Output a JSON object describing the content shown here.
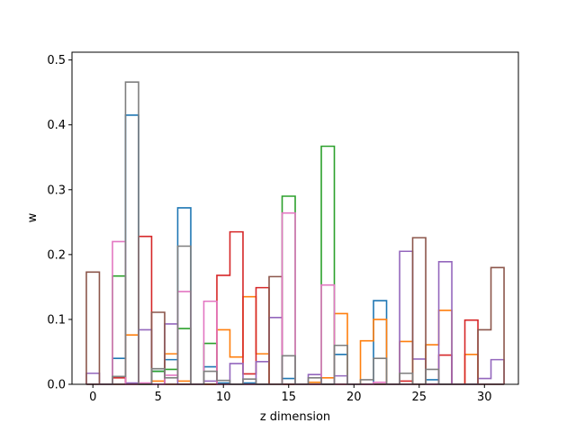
{
  "chart_data": {
    "type": "bar",
    "style": "step-histogram-outlines",
    "xlabel": "z dimension",
    "ylabel": "w",
    "xlim": [
      -1.6,
      32.6
    ],
    "ylim": [
      0,
      0.512
    ],
    "xticks": [
      0,
      5,
      10,
      15,
      20,
      25,
      30
    ],
    "yticks": [
      0.0,
      0.1,
      0.2,
      0.3,
      0.4,
      0.5
    ],
    "ytick_labels": [
      "0.0",
      "0.1",
      "0.2",
      "0.3",
      "0.4",
      "0.5"
    ],
    "grid": false,
    "legend": "none",
    "x": [
      0,
      1,
      2,
      3,
      4,
      5,
      6,
      7,
      8,
      9,
      10,
      11,
      12,
      13,
      14,
      15,
      16,
      17,
      18,
      19,
      20,
      21,
      22,
      23,
      24,
      25,
      26,
      27,
      28,
      29,
      30,
      31
    ],
    "series": [
      {
        "color": "#1f77b4",
        "values": [
          0,
          0,
          0.04,
          0.415,
          0,
          0.02,
          0.038,
          0.272,
          0,
          0.027,
          0.002,
          0,
          0.002,
          0,
          0,
          0.009,
          0,
          0,
          0,
          0.046,
          0,
          0,
          0.129,
          0,
          0,
          0,
          0.007,
          0,
          0,
          0,
          0,
          0
        ]
      },
      {
        "color": "#ff7f0e",
        "values": [
          0,
          0,
          0,
          0.076,
          0,
          0.005,
          0.047,
          0.005,
          0,
          0,
          0.084,
          0.042,
          0.135,
          0.047,
          0,
          0,
          0,
          0.003,
          0.01,
          0.109,
          0,
          0.067,
          0.1,
          0,
          0.066,
          0,
          0.061,
          0.114,
          0,
          0.046,
          0,
          0
        ]
      },
      {
        "color": "#2ca02c",
        "values": [
          0,
          0,
          0.167,
          0,
          0,
          0.02,
          0.023,
          0.086,
          0,
          0.063,
          0,
          0,
          0,
          0,
          0,
          0.29,
          0,
          0,
          0.367,
          0,
          0,
          0,
          0,
          0,
          0,
          0,
          0,
          0,
          0,
          0,
          0,
          0
        ]
      },
      {
        "color": "#d62728",
        "values": [
          0,
          0,
          0.01,
          0,
          0.228,
          0,
          0,
          0,
          0,
          0,
          0.168,
          0.235,
          0.016,
          0.149,
          0,
          0,
          0,
          0,
          0,
          0,
          0,
          0,
          0,
          0,
          0.005,
          0,
          0,
          0.045,
          0,
          0.099,
          0,
          0
        ]
      },
      {
        "color": "#9467bd",
        "values": [
          0.017,
          0,
          0,
          0.002,
          0.084,
          0,
          0.093,
          0,
          0,
          0.005,
          0,
          0.032,
          0,
          0.035,
          0.103,
          0,
          0,
          0.015,
          0,
          0.013,
          0,
          0,
          0,
          0,
          0.205,
          0.039,
          0,
          0.189,
          0,
          0,
          0.009,
          0.038
        ]
      },
      {
        "color": "#8c564b",
        "values": [
          0.173,
          0,
          0,
          0,
          0,
          0.111,
          0,
          0,
          0,
          0,
          0,
          0,
          0,
          0,
          0.166,
          0,
          0,
          0,
          0,
          0,
          0,
          0,
          0,
          0,
          0,
          0.226,
          0,
          0,
          0,
          0,
          0.084,
          0.18
        ]
      },
      {
        "color": "#e377c2",
        "values": [
          0,
          0,
          0.22,
          0,
          0.002,
          0,
          0.014,
          0.143,
          0,
          0.128,
          0,
          0,
          0,
          0,
          0,
          0.264,
          0,
          0,
          0.153,
          0,
          0,
          0,
          0.003,
          0,
          0,
          0,
          0,
          0,
          0,
          0,
          0,
          0
        ]
      },
      {
        "color": "#7f7f7f",
        "values": [
          0,
          0,
          0.012,
          0.466,
          0,
          0.024,
          0.01,
          0.213,
          0,
          0.02,
          0.006,
          0,
          0.008,
          0,
          0,
          0.044,
          0,
          0.01,
          0,
          0.06,
          0,
          0.007,
          0.04,
          0,
          0.017,
          0,
          0.023,
          0,
          0,
          0,
          0,
          0
        ]
      }
    ]
  }
}
